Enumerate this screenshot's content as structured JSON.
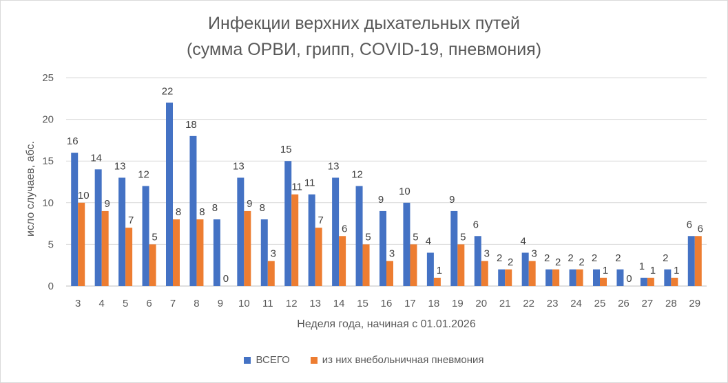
{
  "chart_data": {
    "type": "bar",
    "title": "Инфекции верхних дыхательных путей",
    "subtitle": "(сумма ОРВИ, грипп, COVID-19, пневмония)",
    "xlabel": "Неделя года, начиная с 01.01.2026",
    "ylabel": "исло случаев, абс.",
    "ylim": [
      0,
      25
    ],
    "yticks": [
      "0",
      "5",
      "10",
      "15",
      "20",
      "25"
    ],
    "grid": true,
    "legend_position": "bottom",
    "categories": [
      "3",
      "4",
      "5",
      "6",
      "7",
      "8",
      "9",
      "10",
      "11",
      "12",
      "13",
      "14",
      "15",
      "16",
      "17",
      "18",
      "19",
      "20",
      "21",
      "22",
      "23",
      "24",
      "25",
      "26",
      "27",
      "28",
      "29"
    ],
    "series": [
      {
        "name": "ВСЕГО",
        "color": "#4472C4",
        "values": [
          16,
          14,
          13,
          12,
          22,
          18,
          8,
          13,
          8,
          15,
          11,
          13,
          12,
          9,
          10,
          4,
          9,
          6,
          2,
          4,
          2,
          2,
          2,
          2,
          1,
          2,
          6
        ],
        "labels": [
          "16",
          "14",
          "13",
          "12",
          "22",
          "18",
          "8",
          "13",
          "8",
          "15",
          "11",
          "13",
          "12",
          "9",
          "10",
          "4",
          "9",
          "6",
          "2",
          "4",
          "2",
          "2",
          "2",
          "2",
          "1",
          "2",
          "6"
        ]
      },
      {
        "name": "из них внебольничная пневмония",
        "color": "#ED7D31",
        "values": [
          10,
          9,
          7,
          5,
          8,
          8,
          0,
          9,
          3,
          11,
          7,
          6,
          5,
          3,
          5,
          1,
          5,
          3,
          2,
          3,
          2,
          2,
          1,
          0,
          1,
          1,
          6
        ],
        "labels": [
          "10",
          "9",
          "7",
          "5",
          "8",
          "8",
          "0",
          "9",
          "3",
          "11",
          "7",
          "6",
          "5",
          "3",
          "5",
          "1",
          "5",
          "3",
          "2",
          "3",
          "2",
          "2",
          "1",
          "0",
          "1",
          "1",
          "6"
        ]
      }
    ]
  }
}
